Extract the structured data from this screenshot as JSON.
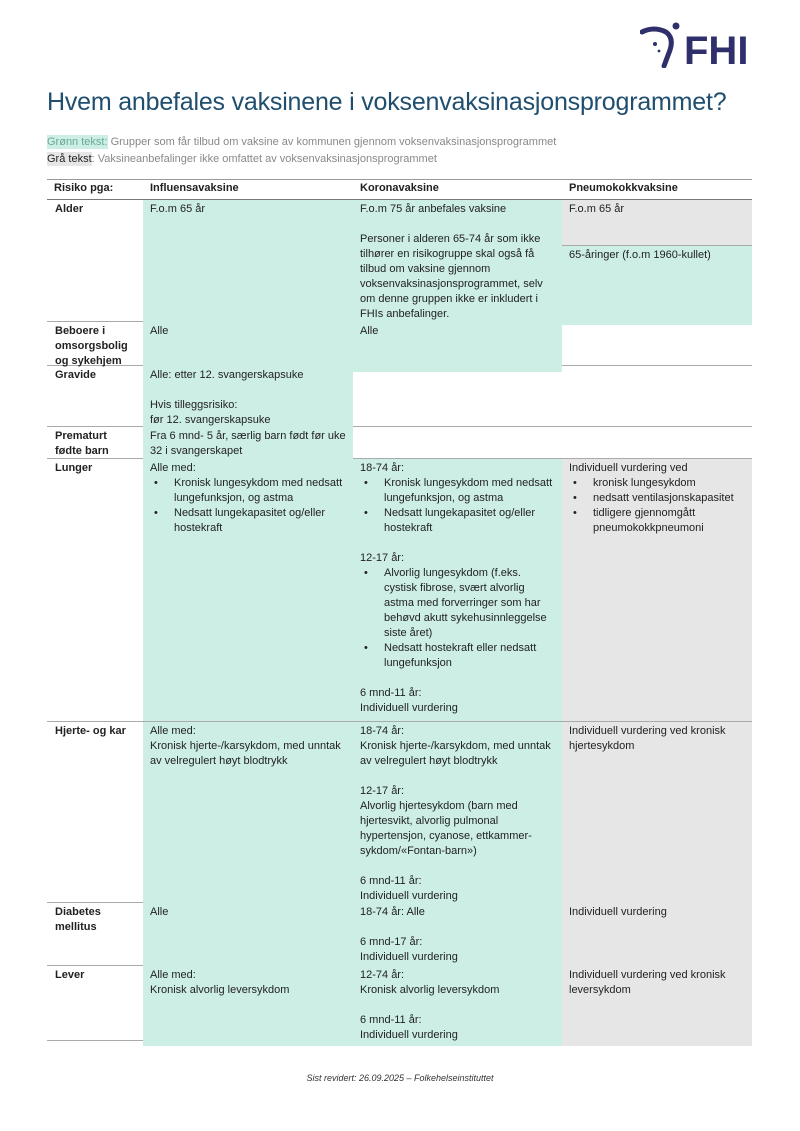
{
  "logo": {
    "text": "FHI",
    "color": "#2e2f6b"
  },
  "title": "Hvem anbefales vaksinene i voksenvaksinasjonsprogrammet?",
  "legend": [
    {
      "key": "Grønn tekst:",
      "text": " Grupper som får tilbud om vaksine av kommunen gjennom voksenvaksinasjonsprogrammet"
    },
    {
      "key": "Grå tekst",
      "text": ": Vaksineanbefalinger ikke omfattet av voksenvaksinasjonsprogrammet"
    }
  ],
  "colors": {
    "green": "#cdeee5",
    "grey": "#e6e6e6",
    "title": "#1f4e6e"
  },
  "table": {
    "headers": [
      "Risiko pga:",
      "Influensavaksine",
      "Koronavaksine",
      "Pneumokokkvaksine"
    ],
    "rows": [
      {
        "label": "Alder",
        "h": 121,
        "cells": [
          {
            "bg": "green",
            "groups": [
              [
                "F.o.m 65 år"
              ]
            ]
          },
          {
            "bg": "green",
            "groups": [
              [
                "F.o.m 75 år anbefales vaksine"
              ],
              [
                "Personer i alderen 65-74 år som ikke tilhører en risikogruppe skal også få tilbud om vaksine gjennom voksenvaksinasjonsprogrammet, selv om denne gruppen ikke er inkludert i FHIs anbefalinger."
              ]
            ]
          },
          {
            "sub": [
              {
                "bg": "grey",
                "h": 40,
                "groups": [
                  [
                    "F.o.m 65 år"
                  ]
                ]
              },
              {
                "bg": "green",
                "groups": [
                  [
                    "65-åringer (f.o.m 1960-kullet)"
                  ]
                ]
              }
            ]
          }
        ]
      },
      {
        "label": "Beboere i omsorgsbolig og sykehjem",
        "h": 43,
        "cells": [
          {
            "bg": "green",
            "groups": [
              [
                "Alle"
              ]
            ]
          },
          {
            "bg": "green",
            "groups": [
              [
                "Alle"
              ]
            ]
          },
          {
            "bg": "none",
            "groups": []
          }
        ]
      },
      {
        "label": "Gravide",
        "h": 60,
        "cells": [
          {
            "bg": "green",
            "groups": [
              [
                "Alle: etter 12. svangerskapsuke"
              ],
              [
                "Hvis tilleggsrisiko:",
                "før 12. svangerskapsuke"
              ]
            ]
          },
          {
            "bg": "none",
            "groups": []
          },
          {
            "bg": "none",
            "groups": []
          }
        ]
      },
      {
        "label": "Prematurt fødte barn",
        "h": 31,
        "cells": [
          {
            "bg": "green",
            "groups": [
              [
                "Fra 6 mnd- 5 år, særlig barn født før uke 32 i svangerskapet"
              ]
            ]
          },
          {
            "bg": "none",
            "groups": []
          },
          {
            "bg": "none",
            "groups": []
          }
        ]
      },
      {
        "label": "Lunger",
        "h": 262,
        "cells": [
          {
            "bg": "green",
            "groups": [
              [
                "Alle med:",
                {
                  "b": "Kronisk lungesykdom med nedsatt lungefunksjon, og astma"
                },
                {
                  "b": "Nedsatt lungekapasitet og/eller hostekraft"
                }
              ]
            ]
          },
          {
            "bg": "green",
            "groups": [
              [
                "18-74 år:",
                {
                  "b": "Kronisk lungesykdom med nedsatt lungefunksjon, og astma"
                },
                {
                  "b": "Nedsatt lungekapasitet og/eller hostekraft"
                }
              ],
              [
                "12-17 år:",
                {
                  "b": "Alvorlig lungesykdom (f.eks. cystisk fibrose, svært alvorlig astma med forverringer som har behøvd akutt sykehusinnleggelse siste året)"
                },
                {
                  "b": "Nedsatt hostekraft eller nedsatt lungefunksjon"
                }
              ],
              [
                "6 mnd-11 år:",
                "Individuell vurdering"
              ]
            ]
          },
          {
            "bg": "grey",
            "groups": [
              [
                "Individuell vurdering ved",
                {
                  "b": "kronisk lungesykdom"
                },
                {
                  "b": "nedsatt ventilasjonskapasitet"
                },
                {
                  "b": "tidligere gjennomgått pneumokokkpneumoni"
                }
              ]
            ]
          }
        ]
      },
      {
        "label": "Hjerte- og kar",
        "h": 180,
        "cells": [
          {
            "bg": "green",
            "groups": [
              [
                "Alle med:",
                "Kronisk hjerte-/karsykdom, med unntak av velregulert høyt blodtrykk"
              ]
            ]
          },
          {
            "bg": "green",
            "groups": [
              [
                "18-74 år:",
                "Kronisk hjerte-/karsykdom, med unntak av velregulert høyt blodtrykk"
              ],
              [
                "12-17 år:",
                "Alvorlig hjertesykdom (barn med hjertesvikt, alvorlig pulmonal hypertensjon, cyanose, ettkammer-sykdom/«Fontan-barn»)"
              ],
              [
                "6 mnd-11 år:",
                "Individuell vurdering"
              ]
            ]
          },
          {
            "bg": "grey",
            "groups": [
              [
                "Individuell vurdering ved kronisk hjertesykdom"
              ]
            ]
          }
        ]
      },
      {
        "label": "Diabetes mellitus",
        "h": 62,
        "cells": [
          {
            "bg": "green",
            "groups": [
              [
                "Alle"
              ]
            ]
          },
          {
            "bg": "green",
            "groups": [
              [
                "18-74 år: Alle"
              ],
              [
                "6 mnd-17 år:",
                "Individuell vurdering"
              ]
            ]
          },
          {
            "bg": "grey",
            "groups": [
              [
                "Individuell vurdering"
              ]
            ]
          }
        ]
      },
      {
        "label": "Lever",
        "h": 74,
        "cells": [
          {
            "bg": "green",
            "groups": [
              [
                "Alle med:",
                "Kronisk alvorlig leversykdom"
              ]
            ]
          },
          {
            "bg": "green",
            "groups": [
              [
                "12-74 år:",
                "Kronisk alvorlig leversykdom"
              ],
              [
                "6 mnd-11 år:",
                "Individuell vurdering"
              ]
            ]
          },
          {
            "bg": "grey",
            "groups": [
              [
                "Individuell vurdering ved kronisk leversykdom"
              ]
            ]
          }
        ]
      }
    ]
  },
  "footer": "Sist revidert: 26.09.2025 – Folkehelseinstituttet"
}
